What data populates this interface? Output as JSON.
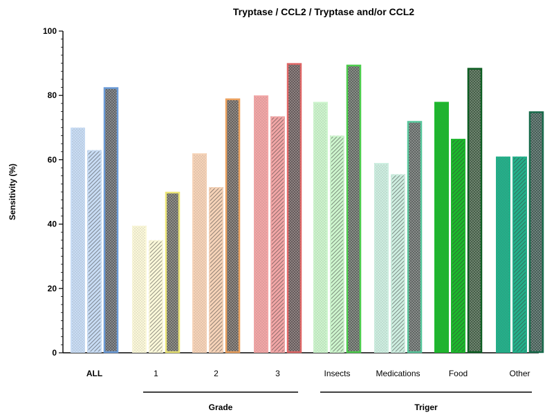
{
  "chart_data": {
    "type": "bar",
    "title": "Tryptase / CCL2 / Tryptase and/or CCL2",
    "ylabel": "Sensitivity (%)",
    "xlabel": "",
    "ylim": [
      0,
      100
    ],
    "yticks": [
      0,
      20,
      40,
      60,
      80,
      100
    ],
    "grid": false,
    "categories": [
      "ALL",
      "1",
      "2",
      "3",
      "Insects",
      "Medications",
      "Food",
      "Other"
    ],
    "category_groups": [
      {
        "label": "Grade",
        "categories": [
          "1",
          "2",
          "3"
        ]
      },
      {
        "label": "Triger",
        "categories": [
          "Insects",
          "Medications",
          "Food",
          "Other"
        ]
      }
    ],
    "series_patterns": [
      "dots",
      "diagonal-hatch",
      "crosshatch"
    ],
    "series": [
      {
        "values": [
          70,
          39.5,
          62,
          80,
          78,
          59,
          78,
          61
        ]
      },
      {
        "values": [
          63,
          35,
          51.5,
          73.5,
          67.5,
          55.5,
          66.5,
          61
        ]
      },
      {
        "values": [
          82.5,
          50,
          79,
          90,
          89.5,
          72,
          88.5,
          75
        ]
      }
    ],
    "category_colors": [
      {
        "fill": "#c8dcf4",
        "edge": "#6a9bd8"
      },
      {
        "fill": "#fbf8d9",
        "edge": "#ece676"
      },
      {
        "fill": "#f6d3b8",
        "edge": "#eca15e"
      },
      {
        "fill": "#f2a6a6",
        "edge": "#e06666"
      },
      {
        "fill": "#cdf5cd",
        "edge": "#4ccd4c"
      },
      {
        "fill": "#cdeee0",
        "edge": "#57c79c"
      },
      {
        "fill": "#1cb92c",
        "edge": "#0d5e22"
      },
      {
        "fill": "#23b08a",
        "edge": "#176a4a"
      }
    ]
  }
}
